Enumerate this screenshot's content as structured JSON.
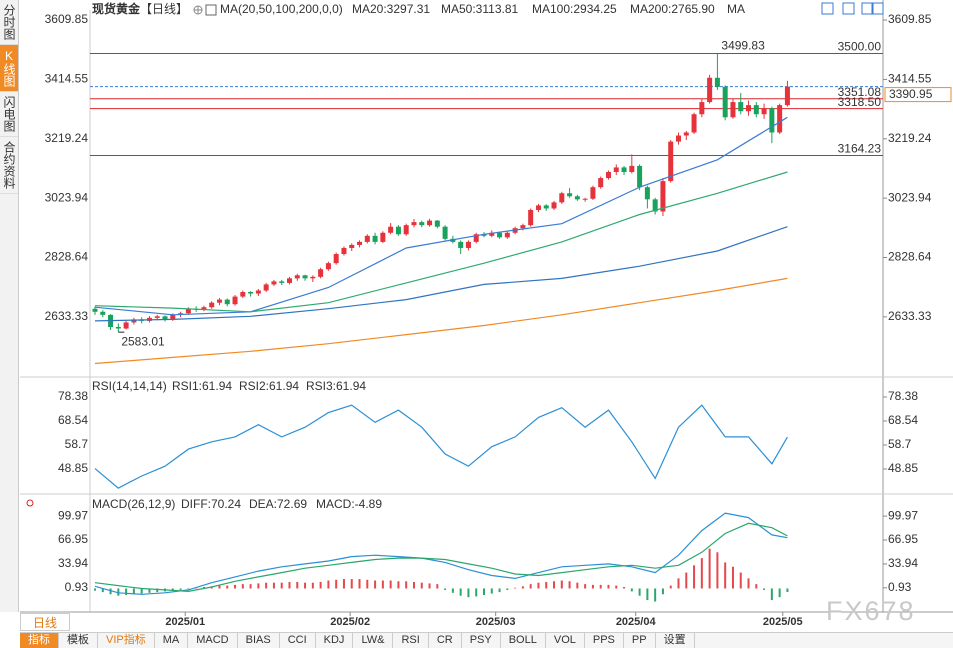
{
  "ui": {
    "side_tabs": [
      "分时图",
      "K线图",
      "闪电图",
      "合约资料"
    ],
    "period_tab": "日线",
    "toolbar": [
      "指标",
      "模板",
      "VIP指标",
      "MA",
      "MACD",
      "BIAS",
      "CCI",
      "KDJ",
      "LW&",
      "RSI",
      "CR",
      "PSY",
      "BOLL",
      "VOL",
      "PPS",
      "PP",
      "设置"
    ],
    "watermark": "FX678"
  },
  "chart_data": [
    {
      "type": "candlestick",
      "title": "现货黄金",
      "period": "【日线】",
      "indicator": "MA(20,50,100,200,0,0)",
      "up_color": "#e5323b",
      "down_color": "#17a35b",
      "candles": [
        [
          2660,
          2668,
          2640,
          2650
        ],
        [
          2650,
          2655,
          2632,
          2640
        ],
        [
          2640,
          2642,
          2590,
          2600
        ],
        [
          2600,
          2612,
          2583.01,
          2595
        ],
        [
          2595,
          2620,
          2592,
          2615
        ],
        [
          2615,
          2630,
          2608,
          2625
        ],
        [
          2625,
          2632,
          2612,
          2620
        ],
        [
          2620,
          2636,
          2615,
          2630
        ],
        [
          2630,
          2640,
          2622,
          2635
        ],
        [
          2635,
          2638,
          2618,
          2625
        ],
        [
          2625,
          2645,
          2620,
          2640
        ],
        [
          2640,
          2650,
          2632,
          2645
        ],
        [
          2645,
          2665,
          2640,
          2660
        ],
        [
          2660,
          2668,
          2650,
          2658
        ],
        [
          2658,
          2670,
          2652,
          2665
        ],
        [
          2665,
          2685,
          2660,
          2680
        ],
        [
          2680,
          2695,
          2672,
          2690
        ],
        [
          2690,
          2694,
          2668,
          2675
        ],
        [
          2675,
          2705,
          2670,
          2700
        ],
        [
          2700,
          2720,
          2695,
          2715
        ],
        [
          2715,
          2718,
          2700,
          2710
        ],
        [
          2710,
          2725,
          2702,
          2720
        ],
        [
          2720,
          2745,
          2715,
          2740
        ],
        [
          2740,
          2755,
          2735,
          2750
        ],
        [
          2750,
          2755,
          2738,
          2745
        ],
        [
          2745,
          2765,
          2740,
          2760
        ],
        [
          2760,
          2775,
          2752,
          2770
        ],
        [
          2770,
          2772,
          2752,
          2760
        ],
        [
          2760,
          2770,
          2748,
          2765
        ],
        [
          2765,
          2795,
          2760,
          2790
        ],
        [
          2790,
          2815,
          2785,
          2810
        ],
        [
          2810,
          2845,
          2805,
          2840
        ],
        [
          2840,
          2865,
          2835,
          2860
        ],
        [
          2860,
          2875,
          2850,
          2870
        ],
        [
          2870,
          2885,
          2862,
          2880
        ],
        [
          2880,
          2905,
          2875,
          2900
        ],
        [
          2900,
          2910,
          2872,
          2880
        ],
        [
          2880,
          2915,
          2876,
          2910
        ],
        [
          2910,
          2942,
          2905,
          2930
        ],
        [
          2930,
          2935,
          2900,
          2905
        ],
        [
          2905,
          2940,
          2900,
          2935
        ],
        [
          2935,
          2955,
          2928,
          2945
        ],
        [
          2945,
          2950,
          2928,
          2935
        ],
        [
          2935,
          2956,
          2930,
          2950
        ],
        [
          2950,
          2952,
          2925,
          2930
        ],
        [
          2930,
          2935,
          2885,
          2890
        ],
        [
          2890,
          2900,
          2875,
          2880
        ],
        [
          2880,
          2885,
          2840,
          2860
        ],
        [
          2860,
          2885,
          2852,
          2880
        ],
        [
          2880,
          2910,
          2875,
          2905
        ],
        [
          2905,
          2912,
          2895,
          2900
        ],
        [
          2900,
          2918,
          2895,
          2910
        ],
        [
          2910,
          2914,
          2890,
          2895
        ],
        [
          2895,
          2915,
          2890,
          2910
        ],
        [
          2910,
          2930,
          2905,
          2925
        ],
        [
          2925,
          2940,
          2918,
          2935
        ],
        [
          2935,
          2990,
          2930,
          2985
        ],
        [
          2985,
          3005,
          2978,
          3000
        ],
        [
          3000,
          3004,
          2982,
          2990
        ],
        [
          2990,
          3015,
          2985,
          3010
        ],
        [
          3010,
          3045,
          3005,
          3040
        ],
        [
          3040,
          3057,
          3025,
          3030
        ],
        [
          3030,
          3035,
          3015,
          3020
        ],
        [
          3020,
          3025,
          3012,
          3022
        ],
        [
          3022,
          3065,
          3018,
          3060
        ],
        [
          3060,
          3095,
          3055,
          3090
        ],
        [
          3090,
          3115,
          3085,
          3110
        ],
        [
          3110,
          3135,
          3100,
          3125
        ],
        [
          3125,
          3130,
          3100,
          3110
        ],
        [
          3110,
          3168,
          3105,
          3130
        ],
        [
          3130,
          3135,
          3050,
          3060
        ],
        [
          3060,
          3065,
          2990,
          3020
        ],
        [
          3020,
          3025,
          2970,
          2980
        ],
        [
          2980,
          3090,
          2965,
          3080
        ],
        [
          3080,
          3215,
          3075,
          3210
        ],
        [
          3210,
          3240,
          3200,
          3230
        ],
        [
          3230,
          3245,
          3215,
          3240
        ],
        [
          3240,
          3305,
          3235,
          3300
        ],
        [
          3300,
          3350,
          3290,
          3340
        ],
        [
          3340,
          3430,
          3335,
          3420
        ],
        [
          3420,
          3499.83,
          3380,
          3390
        ],
        [
          3390,
          3395,
          3280,
          3290
        ],
        [
          3290,
          3350,
          3285,
          3340
        ],
        [
          3340,
          3370,
          3300,
          3310
        ],
        [
          3310,
          3345,
          3295,
          3330
        ],
        [
          3330,
          3340,
          3290,
          3300
        ],
        [
          3300,
          3335,
          3285,
          3320
        ],
        [
          3320,
          3325,
          3205,
          3240
        ],
        [
          3240,
          3335,
          3235,
          3330
        ],
        [
          3330,
          3410,
          3325,
          3390.95
        ]
      ],
      "series": [
        {
          "name": "MA20:3297.31",
          "color": "#3a7bd5",
          "x": [
            0,
            10,
            20,
            30,
            40,
            50,
            60,
            70,
            80,
            89
          ],
          "values": [
            2665,
            2640,
            2650,
            2730,
            2860,
            2905,
            2940,
            3060,
            3150,
            3290
          ]
        },
        {
          "name": "MA50:3113.81",
          "color": "#2eaa6e",
          "x": [
            0,
            10,
            20,
            30,
            40,
            50,
            60,
            70,
            80,
            89
          ],
          "values": [
            2670,
            2662,
            2650,
            2680,
            2745,
            2810,
            2880,
            2970,
            3040,
            3110
          ]
        },
        {
          "name": "MA100:2934.25",
          "color": "#2f74c0",
          "x": [
            0,
            10,
            20,
            30,
            40,
            50,
            60,
            70,
            80,
            89
          ],
          "values": [
            2620,
            2625,
            2635,
            2660,
            2690,
            2740,
            2760,
            2800,
            2850,
            2930
          ]
        },
        {
          "name": "MA200:2765.90",
          "color": "#f08a24",
          "x": [
            0,
            10,
            20,
            30,
            40,
            50,
            60,
            70,
            80,
            89
          ],
          "values": [
            2480,
            2500,
            2520,
            2545,
            2575,
            2605,
            2640,
            2680,
            2720,
            2760
          ]
        }
      ],
      "legend_extra": [
        {
          "name": "MA",
          "color": "#e86aa8"
        }
      ],
      "level_color": "#d9262c",
      "levels": [
        {
          "value": 3500,
          "label": "3500.00"
        },
        3351.08,
        {
          "value": 3318.5,
          "label": "3318.50"
        },
        3164.23
      ],
      "last_color": "#3a7bd5",
      "ylim": [
        2442,
        3643
      ],
      "yticks": [
        3609.85,
        3414.55,
        3219.24,
        3023.94,
        2828.64,
        2633.33
      ]
    },
    {
      "type": "line",
      "title": "RSI(14,14,14)",
      "series": [
        {
          "name": "RSI1:61.94",
          "color": "#2b8fd6",
          "x": [
            0,
            3,
            6,
            9,
            12,
            15,
            18,
            21,
            24,
            27,
            30,
            33,
            36,
            39,
            42,
            45,
            48,
            51,
            54,
            57,
            60,
            63,
            66,
            69,
            72,
            75,
            78,
            81,
            84,
            87,
            89
          ],
          "values": [
            49,
            41,
            46,
            50,
            57,
            60,
            62,
            67,
            62,
            66,
            72,
            75,
            68,
            73,
            66,
            55,
            50,
            58,
            62,
            70,
            74,
            66,
            73,
            60,
            45,
            66,
            75,
            62,
            62,
            51,
            61.94
          ]
        }
      ],
      "legend_extra": [
        {
          "name": "RSI2:61.94",
          "color": "#2aa76a"
        },
        {
          "name": "RSI3:61.94",
          "color": "#3a7bd5"
        }
      ],
      "ylim": [
        40.24,
        85.35
      ],
      "yticks": [
        78.38,
        68.54,
        58.7,
        48.85
      ]
    },
    {
      "type": "macd",
      "title": "MACD(26,12,9)",
      "series": [
        {
          "name": "DIFF:70.24",
          "color": "#2b8fd6",
          "x": [
            0,
            3,
            6,
            9,
            12,
            15,
            18,
            21,
            24,
            27,
            30,
            33,
            36,
            39,
            42,
            45,
            48,
            51,
            54,
            57,
            60,
            63,
            66,
            69,
            72,
            75,
            78,
            81,
            84,
            87,
            89
          ],
          "values": [
            3,
            -6,
            -8,
            -6,
            -2,
            8,
            16,
            24,
            30,
            34,
            38,
            44,
            46,
            44,
            42,
            36,
            26,
            18,
            14,
            22,
            30,
            32,
            34,
            30,
            22,
            46,
            80,
            104,
            98,
            74,
            70.24
          ]
        },
        {
          "name": "DEA:72.69",
          "color": "#2aa76a",
          "x": [
            0,
            3,
            6,
            9,
            12,
            15,
            18,
            21,
            24,
            27,
            30,
            33,
            36,
            39,
            42,
            45,
            48,
            51,
            54,
            57,
            60,
            63,
            66,
            69,
            72,
            75,
            78,
            81,
            84,
            87,
            89
          ],
          "values": [
            8,
            4,
            0,
            -2,
            -4,
            2,
            10,
            16,
            22,
            28,
            32,
            36,
            40,
            42,
            42,
            40,
            34,
            28,
            20,
            18,
            22,
            26,
            30,
            32,
            28,
            32,
            50,
            76,
            90,
            84,
            72.69
          ]
        }
      ],
      "histogram": {
        "name": "MACD:-4.89",
        "color": "#6b8fe0",
        "up_color": "#e5484d",
        "down_color": "#2aa76a",
        "values": [
          -3,
          -5,
          -8,
          -10,
          -9,
          -8,
          -7,
          -6,
          -5,
          -4,
          -3,
          -2,
          -1,
          1,
          2,
          3,
          4,
          4,
          5,
          6,
          6,
          7,
          8,
          8,
          8,
          9,
          9,
          8,
          8,
          9,
          11,
          12,
          13,
          13,
          13,
          12,
          11,
          11,
          11,
          10,
          10,
          9,
          8,
          7,
          6,
          -2,
          -6,
          -10,
          -12,
          -11,
          -9,
          -7,
          -5,
          -2,
          1,
          3,
          6,
          8,
          9,
          10,
          11,
          10,
          8,
          6,
          5,
          5,
          5,
          4,
          2,
          -4,
          -10,
          -16,
          -18,
          -8,
          4,
          14,
          22,
          32,
          42,
          55,
          50,
          36,
          30,
          22,
          14,
          6,
          -2,
          -16,
          -12,
          -4.89
        ]
      },
      "ylim": [
        -29.72,
        122.26
      ],
      "yticks": [
        99.97,
        66.95,
        33.94,
        0.93
      ],
      "xticks": [
        {
          "value": 11.6,
          "label": "2025/01"
        },
        {
          "value": 32.8,
          "label": "2025/02"
        },
        {
          "value": 51.5,
          "label": "2025/03"
        },
        {
          "value": 69.5,
          "label": "2025/04"
        },
        {
          "value": 88.4,
          "label": "2025/05"
        }
      ]
    }
  ]
}
